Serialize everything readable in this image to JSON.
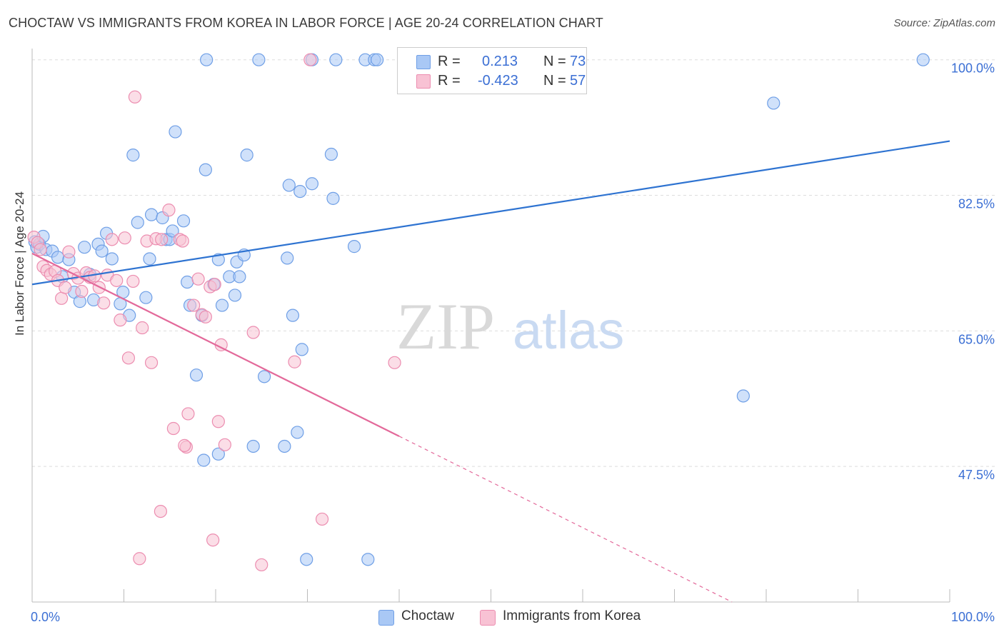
{
  "title": "CHOCTAW VS IMMIGRANTS FROM KOREA IN LABOR FORCE | AGE 20-24 CORRELATION CHART",
  "source": "Source: ZipAtlas.com",
  "watermark": {
    "zip": "ZIP",
    "atlas": "atlas"
  },
  "legend": {
    "r_label": "R =",
    "n_label": "N =",
    "rows": [
      {
        "name": "Choctaw",
        "r": "0.213",
        "n": "73",
        "fill": "#a9c8f5",
        "stroke": "#6f9fe6"
      },
      {
        "name": "Immigrants from Korea",
        "r": "-0.423",
        "n": "57",
        "fill": "#f8c2d4",
        "stroke": "#ec8db0"
      }
    ]
  },
  "colors": {
    "blue_line": "#2e73d1",
    "pink_line": "#e3699a",
    "axis_text": "#3b6fd4",
    "grid": "#dddddd"
  },
  "chart_data": {
    "type": "scatter",
    "title": "CHOCTAW VS IMMIGRANTS FROM KOREA IN LABOR FORCE | AGE 20-24 CORRELATION CHART",
    "xlabel": "",
    "ylabel": "In Labor Force | Age 20-24",
    "xlim": [
      0,
      100
    ],
    "ylim": [
      30,
      102
    ],
    "x_tick_labels": [
      "0.0%",
      "100.0%"
    ],
    "y_ticks": [
      47.5,
      65.0,
      82.5,
      100.0
    ],
    "y_tick_labels": [
      "47.5%",
      "65.0%",
      "82.5%",
      "100.0%"
    ],
    "series": [
      {
        "name": "Choctaw",
        "trend": {
          "x": [
            0,
            100
          ],
          "y": [
            71.0,
            89.5
          ],
          "solid_to": 100
        },
        "points": [
          [
            0.3,
            76.5
          ],
          [
            0.5,
            75.8
          ],
          [
            0.8,
            76.2
          ],
          [
            1.2,
            77.2
          ],
          [
            1.5,
            75.5
          ],
          [
            2.2,
            75.3
          ],
          [
            2.8,
            74.5
          ],
          [
            3.3,
            72.0
          ],
          [
            4.0,
            74.2
          ],
          [
            4.6,
            70.0
          ],
          [
            5.2,
            68.8
          ],
          [
            5.7,
            75.8
          ],
          [
            6.3,
            72.3
          ],
          [
            6.7,
            69.0
          ],
          [
            7.2,
            76.2
          ],
          [
            7.6,
            75.3
          ],
          [
            8.1,
            77.6
          ],
          [
            8.7,
            74.3
          ],
          [
            9.6,
            68.5
          ],
          [
            9.9,
            70.0
          ],
          [
            10.6,
            67.0
          ],
          [
            11.0,
            87.7
          ],
          [
            11.5,
            79.0
          ],
          [
            12.4,
            69.3
          ],
          [
            12.8,
            74.3
          ],
          [
            13.0,
            80.0
          ],
          [
            14.6,
            76.8
          ],
          [
            14.2,
            79.6
          ],
          [
            15.0,
            76.8
          ],
          [
            15.3,
            77.9
          ],
          [
            15.6,
            90.7
          ],
          [
            16.5,
            79.2
          ],
          [
            16.9,
            71.3
          ],
          [
            17.2,
            68.3
          ],
          [
            17.9,
            59.3
          ],
          [
            18.5,
            67.0
          ],
          [
            18.9,
            85.8
          ],
          [
            19.8,
            71.0
          ],
          [
            20.3,
            74.2
          ],
          [
            20.7,
            68.3
          ],
          [
            21.5,
            72.0
          ],
          [
            22.1,
            69.6
          ],
          [
            22.3,
            73.9
          ],
          [
            22.6,
            72.0
          ],
          [
            23.1,
            74.8
          ],
          [
            23.4,
            87.7
          ],
          [
            24.1,
            50.1
          ],
          [
            25.3,
            59.1
          ],
          [
            27.5,
            50.1
          ],
          [
            27.8,
            74.4
          ],
          [
            28.0,
            83.8
          ],
          [
            28.4,
            67.0
          ],
          [
            28.9,
            51.9
          ],
          [
            29.2,
            83.0
          ],
          [
            29.4,
            62.6
          ],
          [
            30.5,
            84.0
          ],
          [
            32.6,
            87.8
          ],
          [
            32.8,
            82.1
          ],
          [
            35.1,
            75.9
          ],
          [
            36.3,
            100.0
          ],
          [
            29.9,
            35.5
          ],
          [
            36.6,
            35.5
          ],
          [
            24.7,
            100.0
          ],
          [
            19.0,
            100.0
          ],
          [
            30.5,
            100.0
          ],
          [
            33.1,
            100.0
          ],
          [
            37.3,
            100.0
          ],
          [
            37.6,
            100.0
          ],
          [
            18.7,
            48.3
          ],
          [
            20.3,
            49.1
          ],
          [
            77.5,
            56.6
          ],
          [
            80.8,
            94.4
          ],
          [
            97.1,
            100.0
          ]
        ]
      },
      {
        "name": "Immigrants from Korea",
        "trend": {
          "x": [
            0,
            100
          ],
          "y": [
            75.0,
            16.0
          ],
          "solid_to": 40
        },
        "points": [
          [
            0.2,
            77.1
          ],
          [
            0.6,
            76.4
          ],
          [
            0.9,
            75.5
          ],
          [
            1.2,
            73.3
          ],
          [
            1.6,
            72.8
          ],
          [
            2.0,
            72.3
          ],
          [
            2.5,
            72.7
          ],
          [
            2.8,
            71.5
          ],
          [
            3.2,
            69.2
          ],
          [
            3.6,
            70.6
          ],
          [
            4.0,
            75.2
          ],
          [
            4.5,
            72.4
          ],
          [
            5.0,
            71.8
          ],
          [
            5.4,
            70.1
          ],
          [
            5.9,
            72.5
          ],
          [
            6.3,
            71.9
          ],
          [
            6.8,
            72.1
          ],
          [
            7.3,
            70.6
          ],
          [
            7.8,
            68.6
          ],
          [
            8.2,
            72.2
          ],
          [
            8.7,
            76.8
          ],
          [
            9.2,
            71.5
          ],
          [
            9.6,
            66.4
          ],
          [
            10.1,
            77.0
          ],
          [
            10.5,
            61.5
          ],
          [
            11.0,
            71.4
          ],
          [
            12.0,
            65.4
          ],
          [
            12.5,
            76.6
          ],
          [
            13.0,
            60.9
          ],
          [
            13.5,
            76.9
          ],
          [
            14.1,
            76.8
          ],
          [
            14.9,
            80.6
          ],
          [
            15.4,
            52.4
          ],
          [
            16.1,
            76.8
          ],
          [
            16.4,
            76.6
          ],
          [
            16.8,
            50.0
          ],
          [
            17.0,
            54.3
          ],
          [
            17.6,
            68.3
          ],
          [
            18.1,
            71.7
          ],
          [
            18.5,
            67.1
          ],
          [
            18.9,
            66.8
          ],
          [
            19.4,
            70.7
          ],
          [
            19.9,
            71.0
          ],
          [
            20.3,
            53.3
          ],
          [
            21.0,
            50.3
          ],
          [
            24.1,
            64.8
          ],
          [
            25.0,
            34.8
          ],
          [
            28.6,
            61.0
          ],
          [
            30.3,
            100.0
          ],
          [
            11.2,
            95.2
          ],
          [
            11.7,
            35.6
          ],
          [
            14.0,
            41.7
          ],
          [
            16.6,
            50.2
          ],
          [
            19.7,
            38.0
          ],
          [
            31.6,
            40.7
          ],
          [
            39.5,
            60.9
          ],
          [
            20.6,
            63.2
          ]
        ]
      }
    ]
  }
}
